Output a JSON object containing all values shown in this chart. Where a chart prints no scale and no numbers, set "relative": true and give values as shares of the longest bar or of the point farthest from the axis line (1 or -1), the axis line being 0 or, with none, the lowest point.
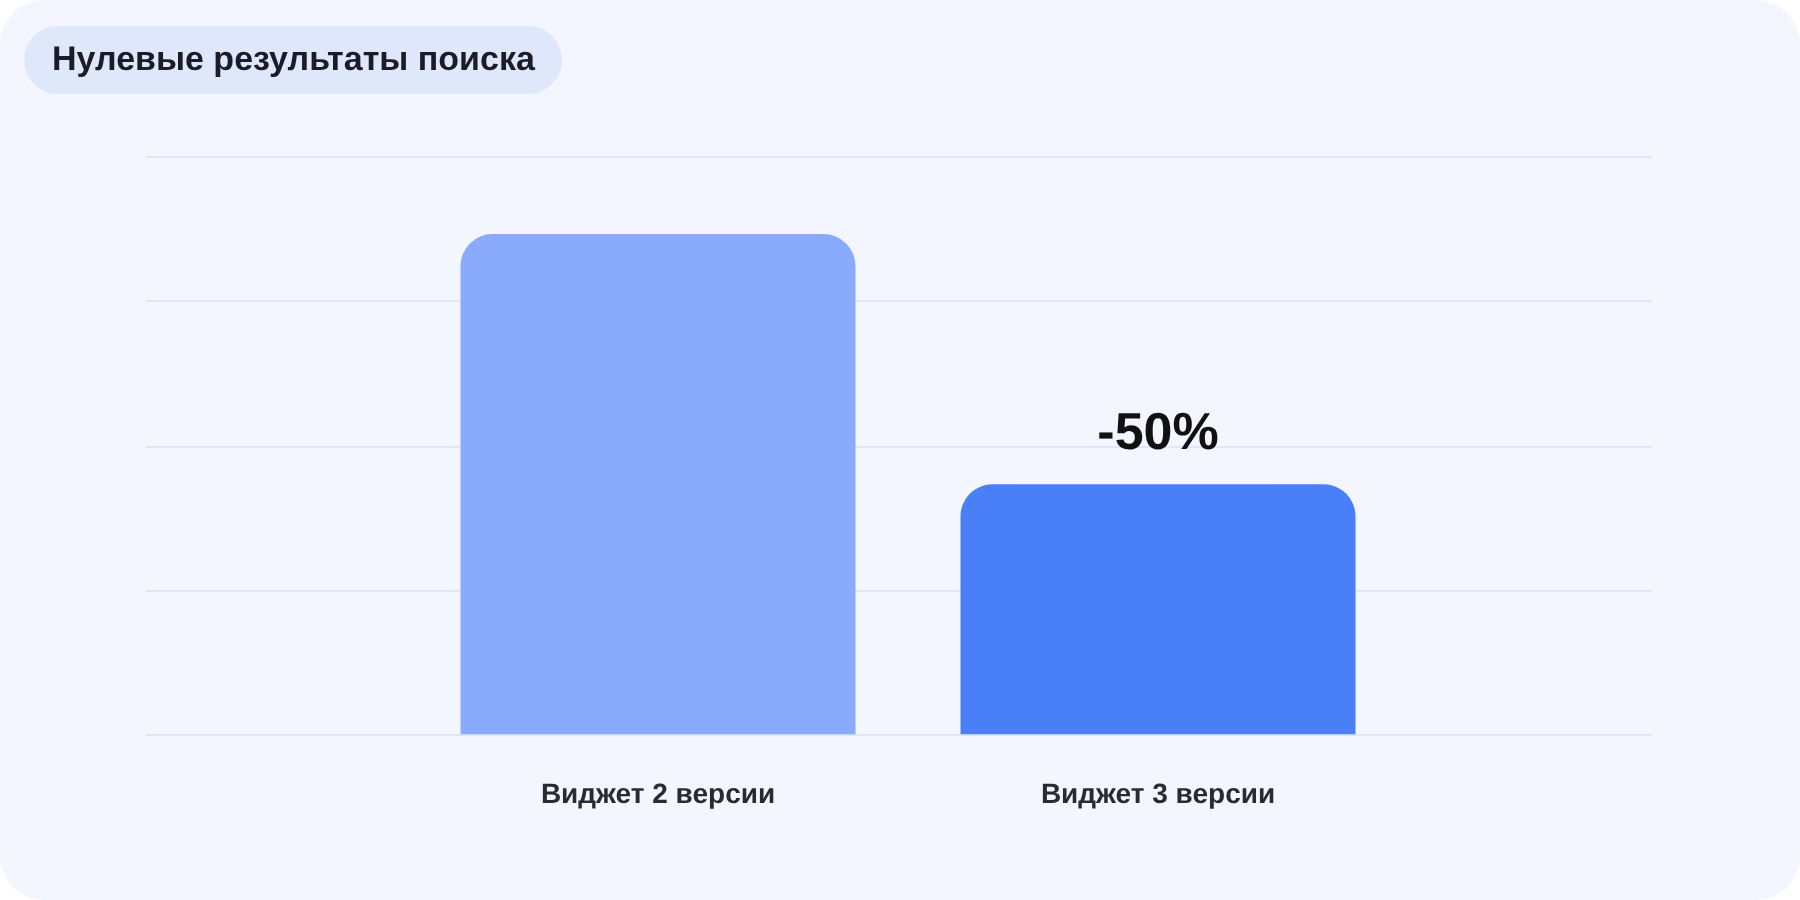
{
  "chart_data": {
    "type": "bar",
    "title": "Нулевые результаты поиска",
    "categories": [
      "Виджет 2 версии",
      "Виджет 3 версии"
    ],
    "values": [
      1,
      0.5
    ],
    "colors": [
      "#8aabfb",
      "#4a80f7"
    ],
    "relative": true,
    "grid": "y",
    "legend": false,
    "annotations": [
      {
        "text": "-50%",
        "x": "Виджет 3 версии",
        "y": 0.5
      }
    ]
  }
}
